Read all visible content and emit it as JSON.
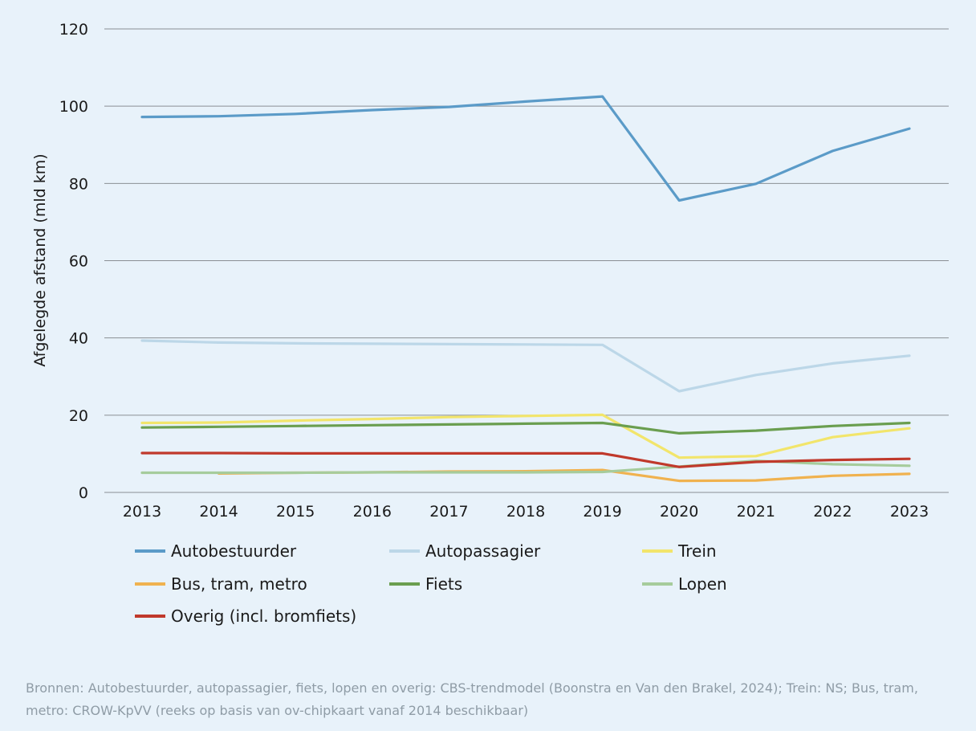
{
  "chart_data": {
    "type": "line",
    "title": "",
    "xlabel": "",
    "ylabel": "Afgelegde afstand (mld km)",
    "ylim": [
      0,
      120
    ],
    "yticks": [
      "0",
      "20",
      "40",
      "60",
      "80",
      "100",
      "120"
    ],
    "x": [
      "2013",
      "2014",
      "2015",
      "2016",
      "2017",
      "2018",
      "2019",
      "2020",
      "2021",
      "2022",
      "2023"
    ],
    "grid": "horizontal",
    "legend_position": "bottom",
    "series": [
      {
        "name": "Autobestuurder",
        "color": "#5b9bc8",
        "values": [
          97.2,
          97.4,
          98.0,
          99.0,
          99.8,
          101.2,
          102.5,
          75.6,
          79.9,
          88.4,
          94.2
        ]
      },
      {
        "name": "Autopassagier",
        "color": "#bcd7e8",
        "values": [
          39.3,
          38.8,
          38.6,
          38.5,
          38.4,
          38.3,
          38.2,
          26.2,
          30.4,
          33.4,
          35.4
        ]
      },
      {
        "name": "Trein",
        "color": "#f2e56b",
        "values": [
          18.0,
          18.1,
          18.6,
          19.0,
          19.5,
          19.8,
          20.1,
          9.0,
          9.4,
          14.3,
          16.6
        ]
      },
      {
        "name": "Bus, tram, metro",
        "color": "#f0b24f",
        "values": [
          null,
          4.9,
          5.1,
          5.2,
          5.4,
          5.5,
          5.8,
          3.0,
          3.1,
          4.3,
          4.8
        ]
      },
      {
        "name": "Fiets",
        "color": "#6a9e4f",
        "values": [
          16.8,
          17.0,
          17.2,
          17.4,
          17.6,
          17.8,
          18.0,
          15.3,
          16.0,
          17.2,
          18.0
        ]
      },
      {
        "name": "Lopen",
        "color": "#a6cc9c",
        "values": [
          5.1,
          5.1,
          5.1,
          5.2,
          5.2,
          5.2,
          5.3,
          6.7,
          8.2,
          7.3,
          6.9
        ]
      },
      {
        "name": "Overig (incl. bromfiets)",
        "color": "#c0392b",
        "values": [
          10.2,
          10.2,
          10.1,
          10.1,
          10.1,
          10.1,
          10.1,
          6.6,
          7.9,
          8.4,
          8.7
        ]
      }
    ]
  },
  "source_text": "Bronnen: Autobestuurder, autopassagier, fiets, lopen en overig: CBS-trendmodel (Boonstra en Van den Brakel, 2024); Trein: NS; Bus, tram, metro: CROW-KpVV (reeks op basis van ov-chipkaart vanaf 2014 beschikbaar)"
}
